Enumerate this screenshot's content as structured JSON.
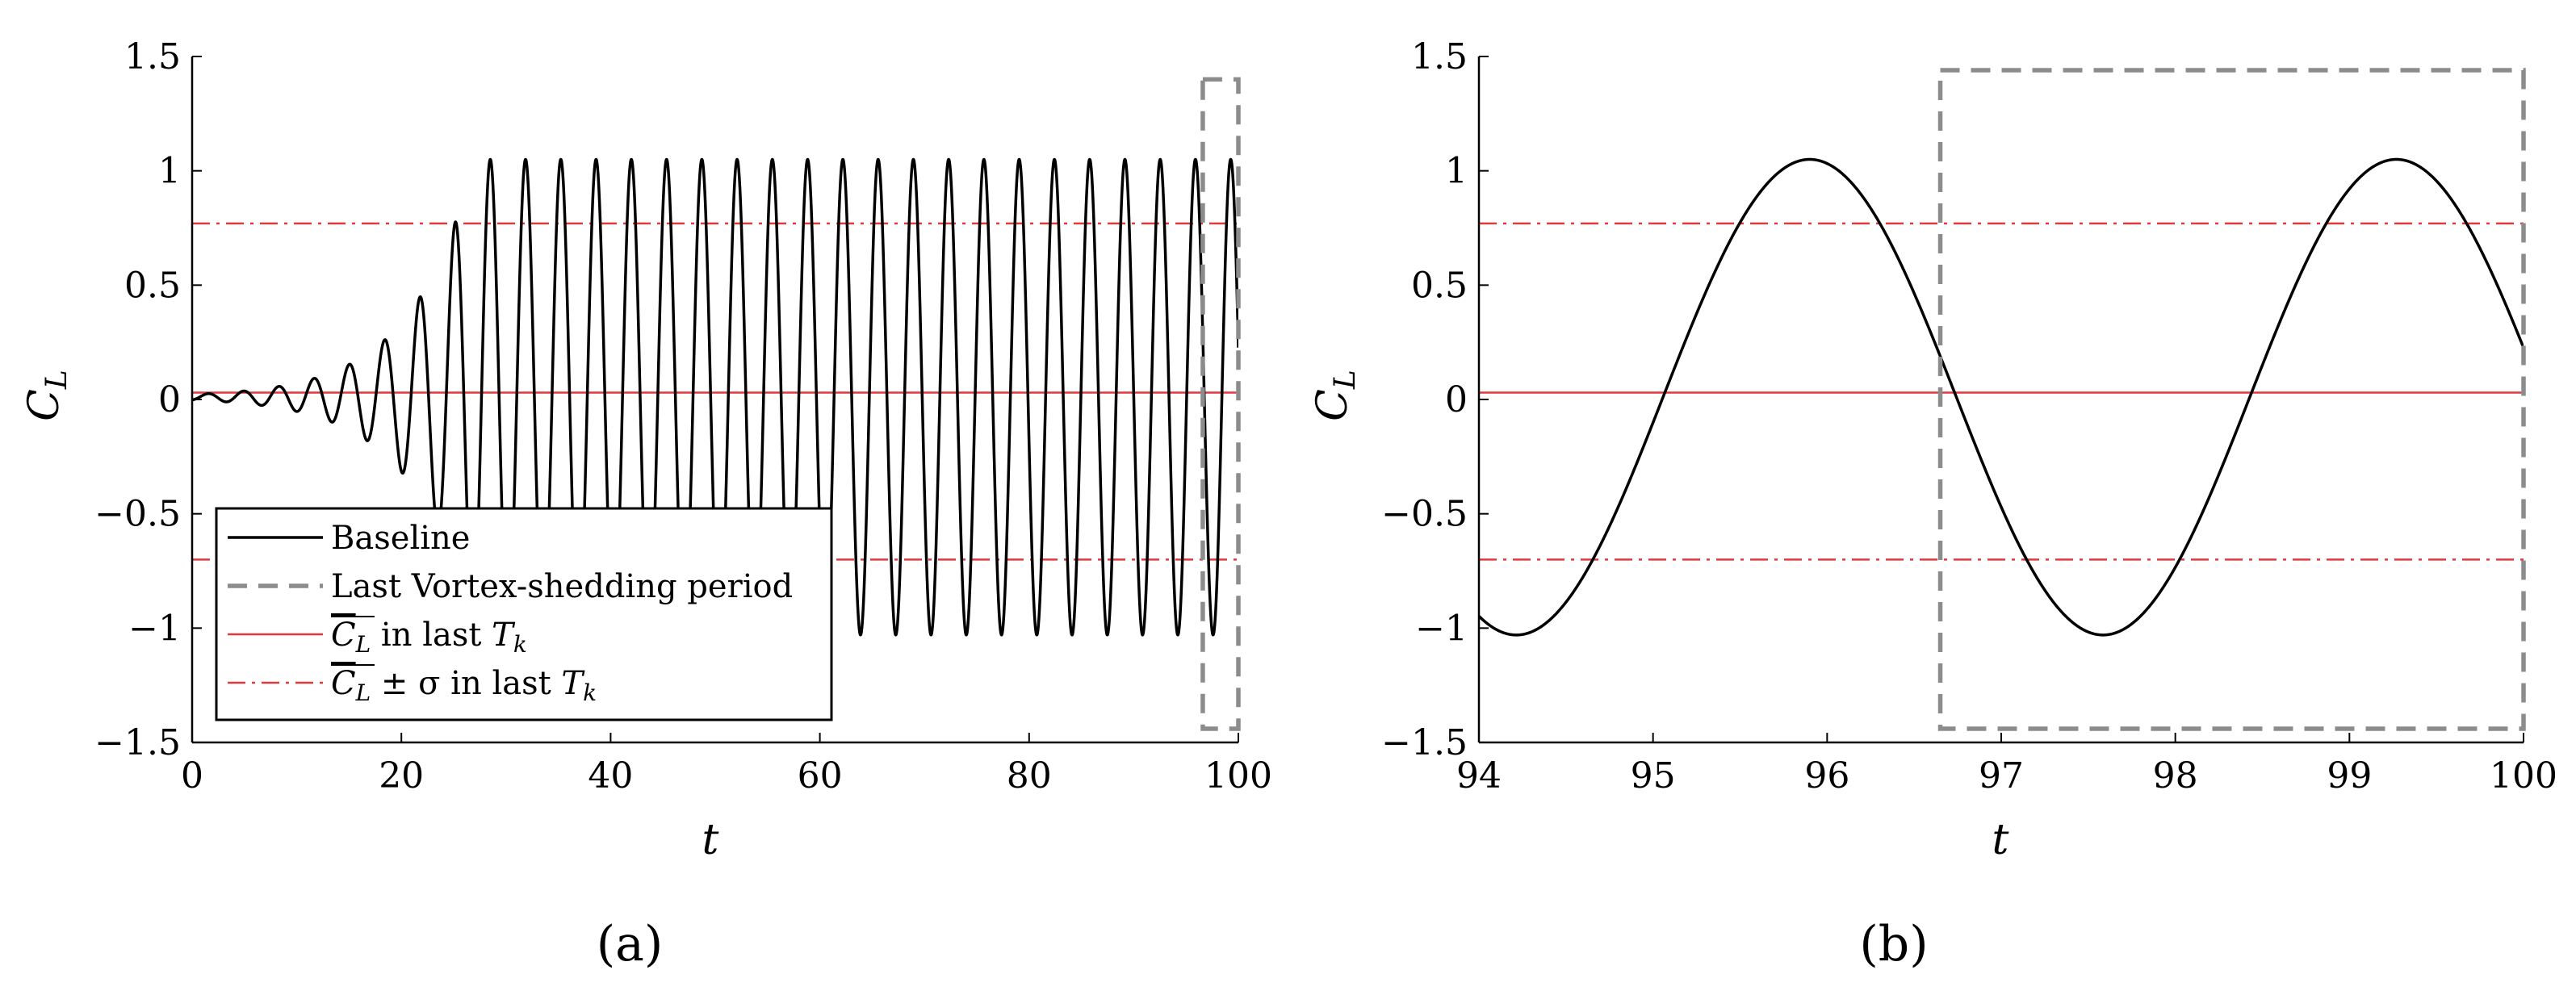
{
  "chart_data": [
    {
      "type": "line",
      "panel_label": "(a)",
      "xlabel": "t",
      "ylabel": "C",
      "ylabel_sub": "L",
      "xlim": [
        0,
        100
      ],
      "ylim": [
        -1.5,
        1.5
      ],
      "xticks": [
        0,
        20,
        40,
        60,
        80,
        100
      ],
      "yticks": [
        -1.5,
        -1,
        -0.5,
        0,
        0.5,
        1,
        1.5
      ],
      "xtick_labels": [
        "0",
        "20",
        "40",
        "60",
        "80",
        "100"
      ],
      "ytick_labels": [
        "−1.5",
        "−1",
        "−0.5",
        "0",
        "0.5",
        "1",
        "1.5"
      ],
      "grid": false,
      "legend_position": "bottom-left",
      "series": [
        {
          "name": "Baseline",
          "kind": "oscillation",
          "color": "#000000",
          "period": 3.37,
          "phase_peak_t": 95.9,
          "amplitude_final": 1.04,
          "offset": 0.01,
          "growth_start_t": 0,
          "initial_amplitude": 0.012,
          "saturation_t": 27,
          "t_range": [
            0,
            100
          ]
        }
      ],
      "reference_lines": {
        "mean": 0.03,
        "upper": 0.77,
        "lower": -0.7,
        "color": "#e0393e"
      },
      "highlight_box": {
        "x": [
          96.6,
          100
        ],
        "y": [
          -1.44,
          1.4
        ],
        "color": "#8c8c8c"
      },
      "legend": {
        "entries": [
          {
            "label": "Baseline",
            "style": "solid-black"
          },
          {
            "label": "Last Vortex-shedding period",
            "style": "dashed-gray"
          },
          {
            "label_prefix": "C",
            "label_sub": "L",
            "label_suffix": " in last ",
            "label_var": "T",
            "label_var_sub": "k",
            "style": "solid-red"
          },
          {
            "label_prefix": "C",
            "label_sub": "L",
            "label_suffix": " ± σ in last ",
            "label_var": "T",
            "label_var_sub": "k",
            "style": "dashdot-red"
          }
        ]
      }
    },
    {
      "type": "line",
      "panel_label": "(b)",
      "xlabel": "t",
      "ylabel": "C",
      "ylabel_sub": "L",
      "xlim": [
        94,
        100
      ],
      "ylim": [
        -1.5,
        1.5
      ],
      "xticks": [
        94,
        95,
        96,
        97,
        98,
        99,
        100
      ],
      "yticks": [
        -1.5,
        -1,
        -0.5,
        0,
        0.5,
        1,
        1.5
      ],
      "xtick_labels": [
        "94",
        "95",
        "96",
        "97",
        "98",
        "99",
        "100"
      ],
      "ytick_labels": [
        "−1.5",
        "−1",
        "−0.5",
        "0",
        "0.5",
        "1",
        "1.5"
      ],
      "grid": false,
      "series": [
        {
          "name": "Baseline",
          "kind": "oscillation",
          "color": "#000000",
          "period": 3.37,
          "phase_peak_t": 95.9,
          "amplitude_final": 1.04,
          "offset": 0.01,
          "t_range": [
            94,
            100
          ]
        }
      ],
      "reference_lines": {
        "mean": 0.03,
        "upper": 0.77,
        "lower": -0.7,
        "color": "#e0393e"
      },
      "highlight_box": {
        "x": [
          96.65,
          100
        ],
        "y": [
          -1.44,
          1.44
        ],
        "color": "#8c8c8c"
      }
    }
  ]
}
